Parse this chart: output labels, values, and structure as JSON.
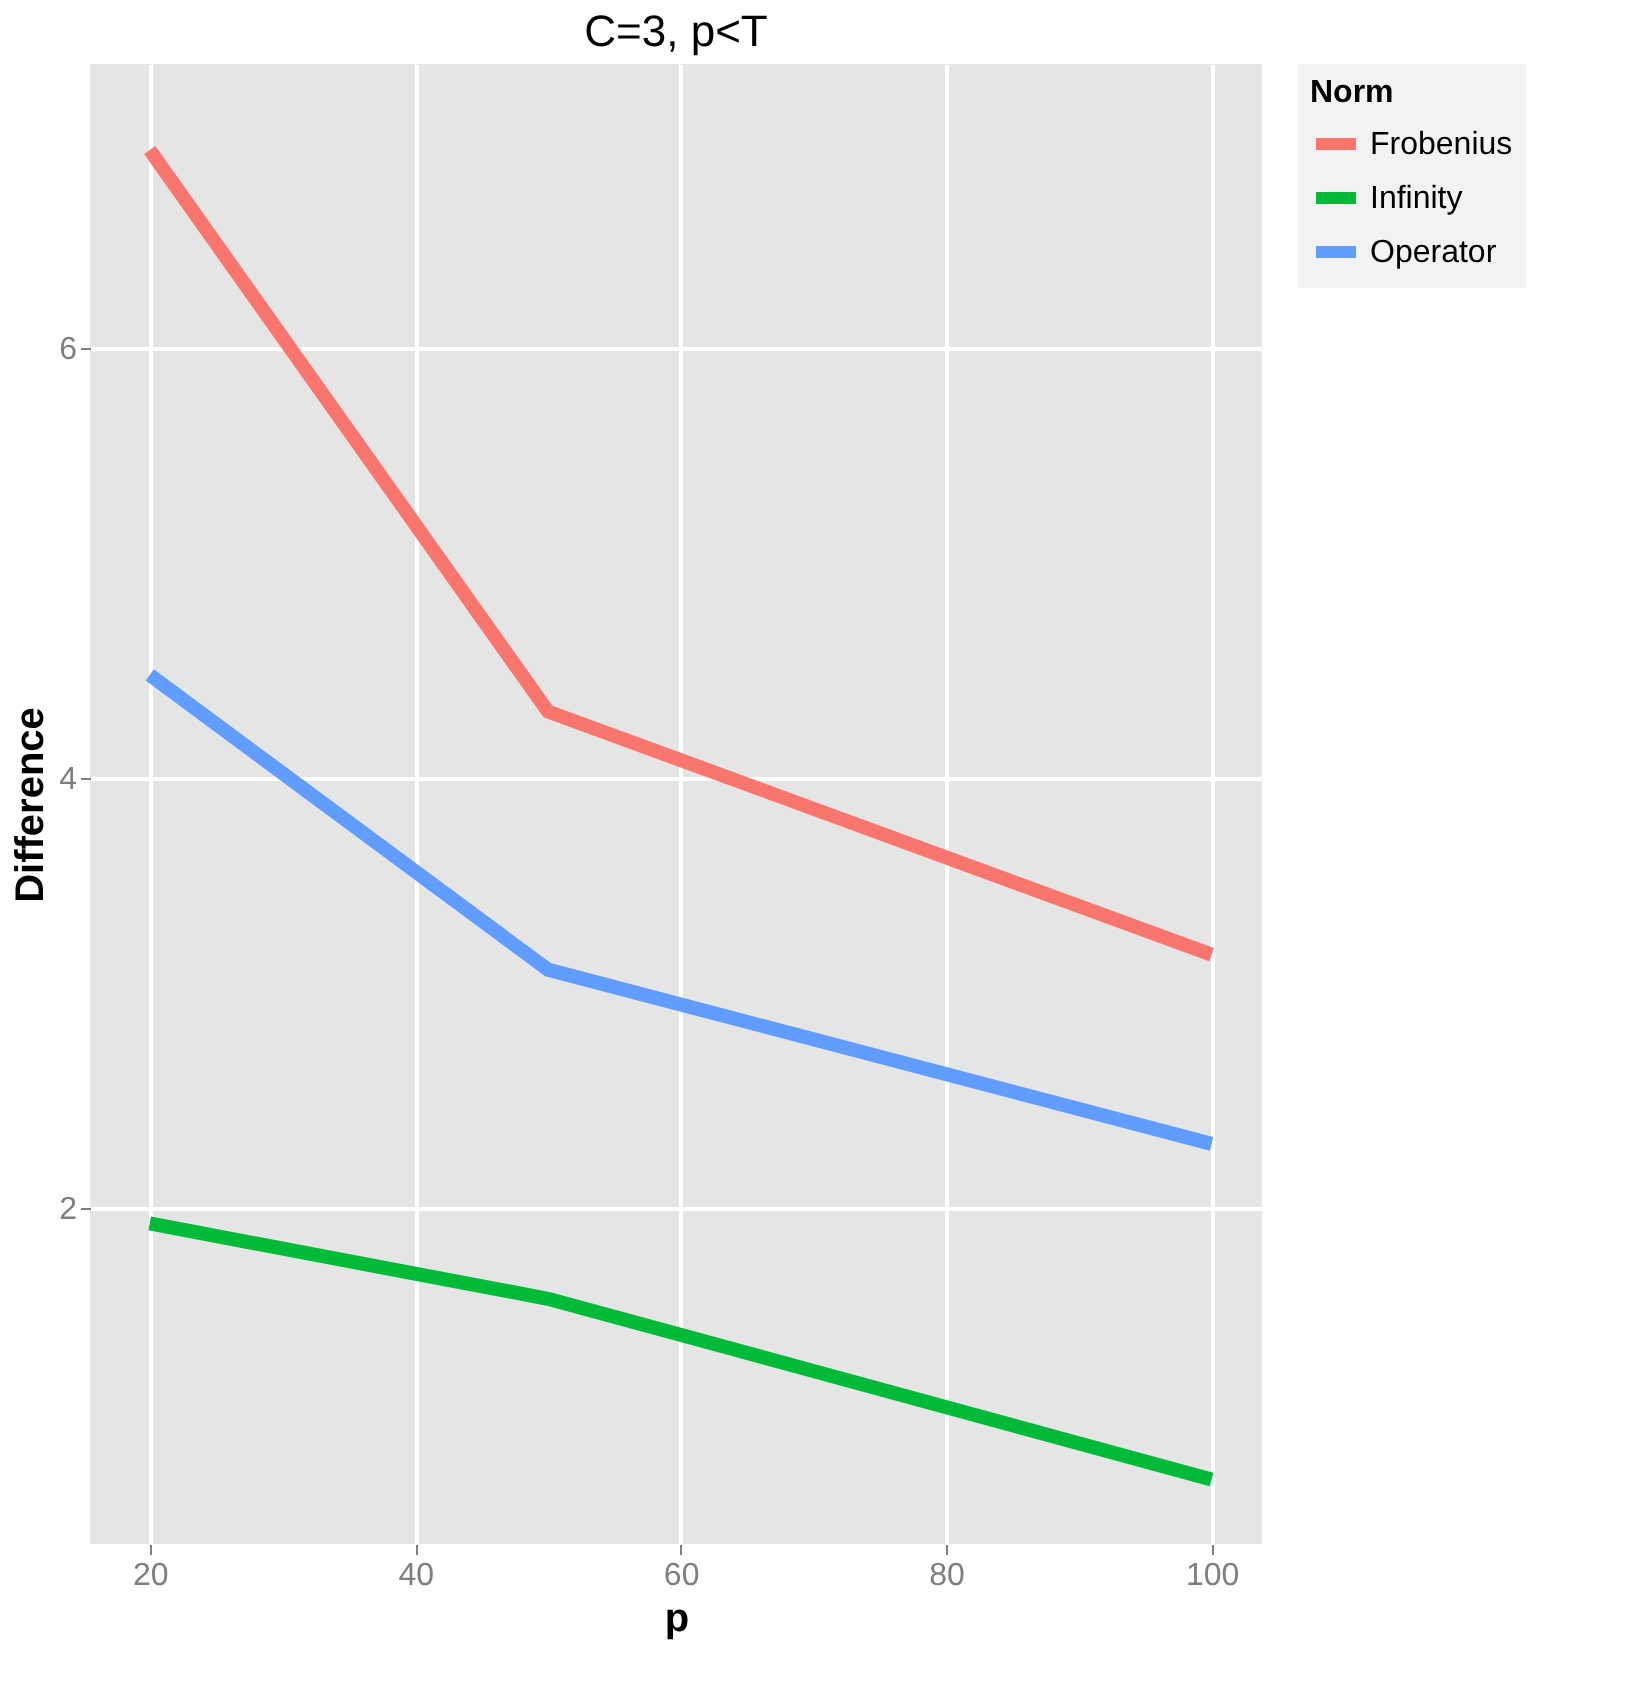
{
  "chart_data": {
    "type": "line",
    "title": "C=3, p<T",
    "xlabel": "p",
    "ylabel": "Difference",
    "legend_title": "Norm",
    "legend": "right",
    "grid": true,
    "x": [
      20,
      50,
      100
    ],
    "series": [
      {
        "name": "Frobenius",
        "color": "#f8766d",
        "values": [
          6.92,
          4.31,
          3.18
        ]
      },
      {
        "name": "Infinity",
        "color": "#00ba38",
        "values": [
          1.93,
          1.58,
          0.74
        ]
      },
      {
        "name": "Operator",
        "color": "#619cff",
        "values": [
          4.48,
          3.11,
          2.3
        ]
      }
    ],
    "xlim": [
      15.5,
      103.8
    ],
    "xticks": [
      20,
      40,
      60,
      80,
      100
    ],
    "ylim": [
      0.44,
      7.32
    ],
    "yticks": [
      2,
      4,
      6
    ]
  }
}
